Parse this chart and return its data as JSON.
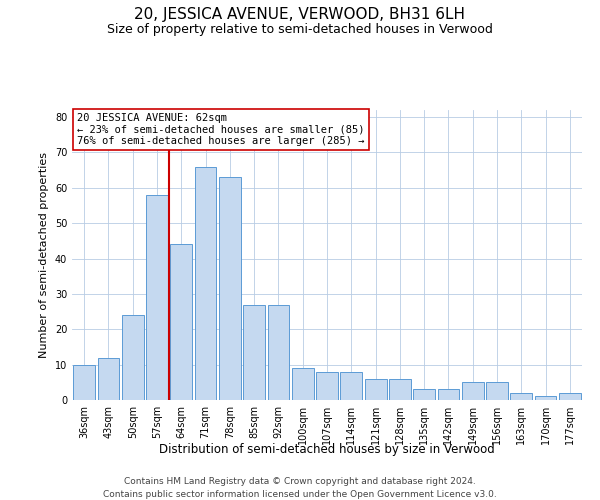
{
  "title": "20, JESSICA AVENUE, VERWOOD, BH31 6LH",
  "subtitle": "Size of property relative to semi-detached houses in Verwood",
  "xlabel": "Distribution of semi-detached houses by size in Verwood",
  "ylabel": "Number of semi-detached properties",
  "categories": [
    "36sqm",
    "43sqm",
    "50sqm",
    "57sqm",
    "64sqm",
    "71sqm",
    "78sqm",
    "85sqm",
    "92sqm",
    "100sqm",
    "107sqm",
    "114sqm",
    "121sqm",
    "128sqm",
    "135sqm",
    "142sqm",
    "149sqm",
    "156sqm",
    "163sqm",
    "170sqm",
    "177sqm"
  ],
  "values": [
    10,
    12,
    24,
    58,
    44,
    66,
    63,
    27,
    27,
    9,
    8,
    8,
    6,
    6,
    3,
    3,
    5,
    5,
    2,
    1,
    2
  ],
  "bar_color": "#c5d9f0",
  "bar_edge_color": "#5b9bd5",
  "vline_color": "#cc0000",
  "vline_x_index": 3.5,
  "annotation_title": "20 JESSICA AVENUE: 62sqm",
  "annotation_line1": "← 23% of semi-detached houses are smaller (85)",
  "annotation_line2": "76% of semi-detached houses are larger (285) →",
  "footnote1": "Contains HM Land Registry data © Crown copyright and database right 2024.",
  "footnote2": "Contains public sector information licensed under the Open Government Licence v3.0.",
  "ylim": [
    0,
    82
  ],
  "yticks": [
    0,
    10,
    20,
    30,
    40,
    50,
    60,
    70,
    80
  ],
  "title_fontsize": 11,
  "subtitle_fontsize": 9,
  "label_fontsize": 8,
  "tick_fontsize": 7,
  "annotation_fontsize": 7.5,
  "footnote_fontsize": 6.5
}
